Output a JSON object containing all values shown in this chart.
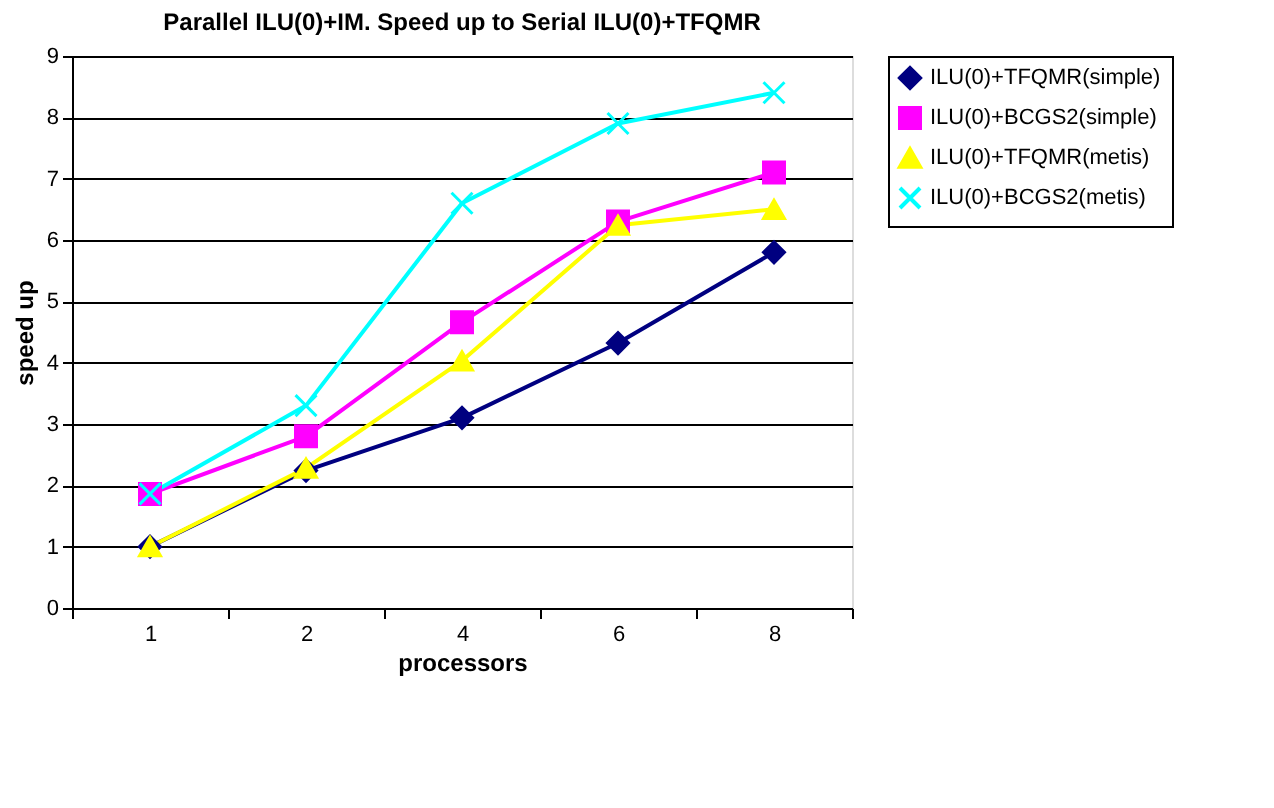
{
  "chart_data": {
    "type": "line",
    "title": "Parallel ILU(0)+IM. Speed up to Serial ILU(0)+TFQMR",
    "xlabel": "processors",
    "ylabel": "speed up",
    "categories": [
      "1",
      "2",
      "4",
      "6",
      "8"
    ],
    "series": [
      {
        "name": "ILU(0)+TFQMR(simple)",
        "color": "#000080",
        "marker": "diamond",
        "values": [
          1.0,
          2.24,
          3.1,
          4.32,
          5.8
        ]
      },
      {
        "name": "ILU(0)+BCGS2(simple)",
        "color": "#ff00ff",
        "marker": "square",
        "values": [
          1.86,
          2.8,
          4.66,
          6.3,
          7.1
        ]
      },
      {
        "name": "ILU(0)+TFQMR(metis)",
        "color": "#ffff00",
        "marker": "triangle",
        "values": [
          1.0,
          2.28,
          4.03,
          6.24,
          6.5
        ]
      },
      {
        "name": "ILU(0)+BCGS2(metis)",
        "color": "#00ffff",
        "marker": "cross",
        "values": [
          1.86,
          3.3,
          6.6,
          7.9,
          8.4
        ]
      }
    ],
    "ylim": [
      0,
      9
    ],
    "yticks": [
      0,
      1,
      2,
      3,
      4,
      5,
      6,
      7,
      8,
      9
    ],
    "grid": "y",
    "legend": "right",
    "line_style": "solid"
  }
}
